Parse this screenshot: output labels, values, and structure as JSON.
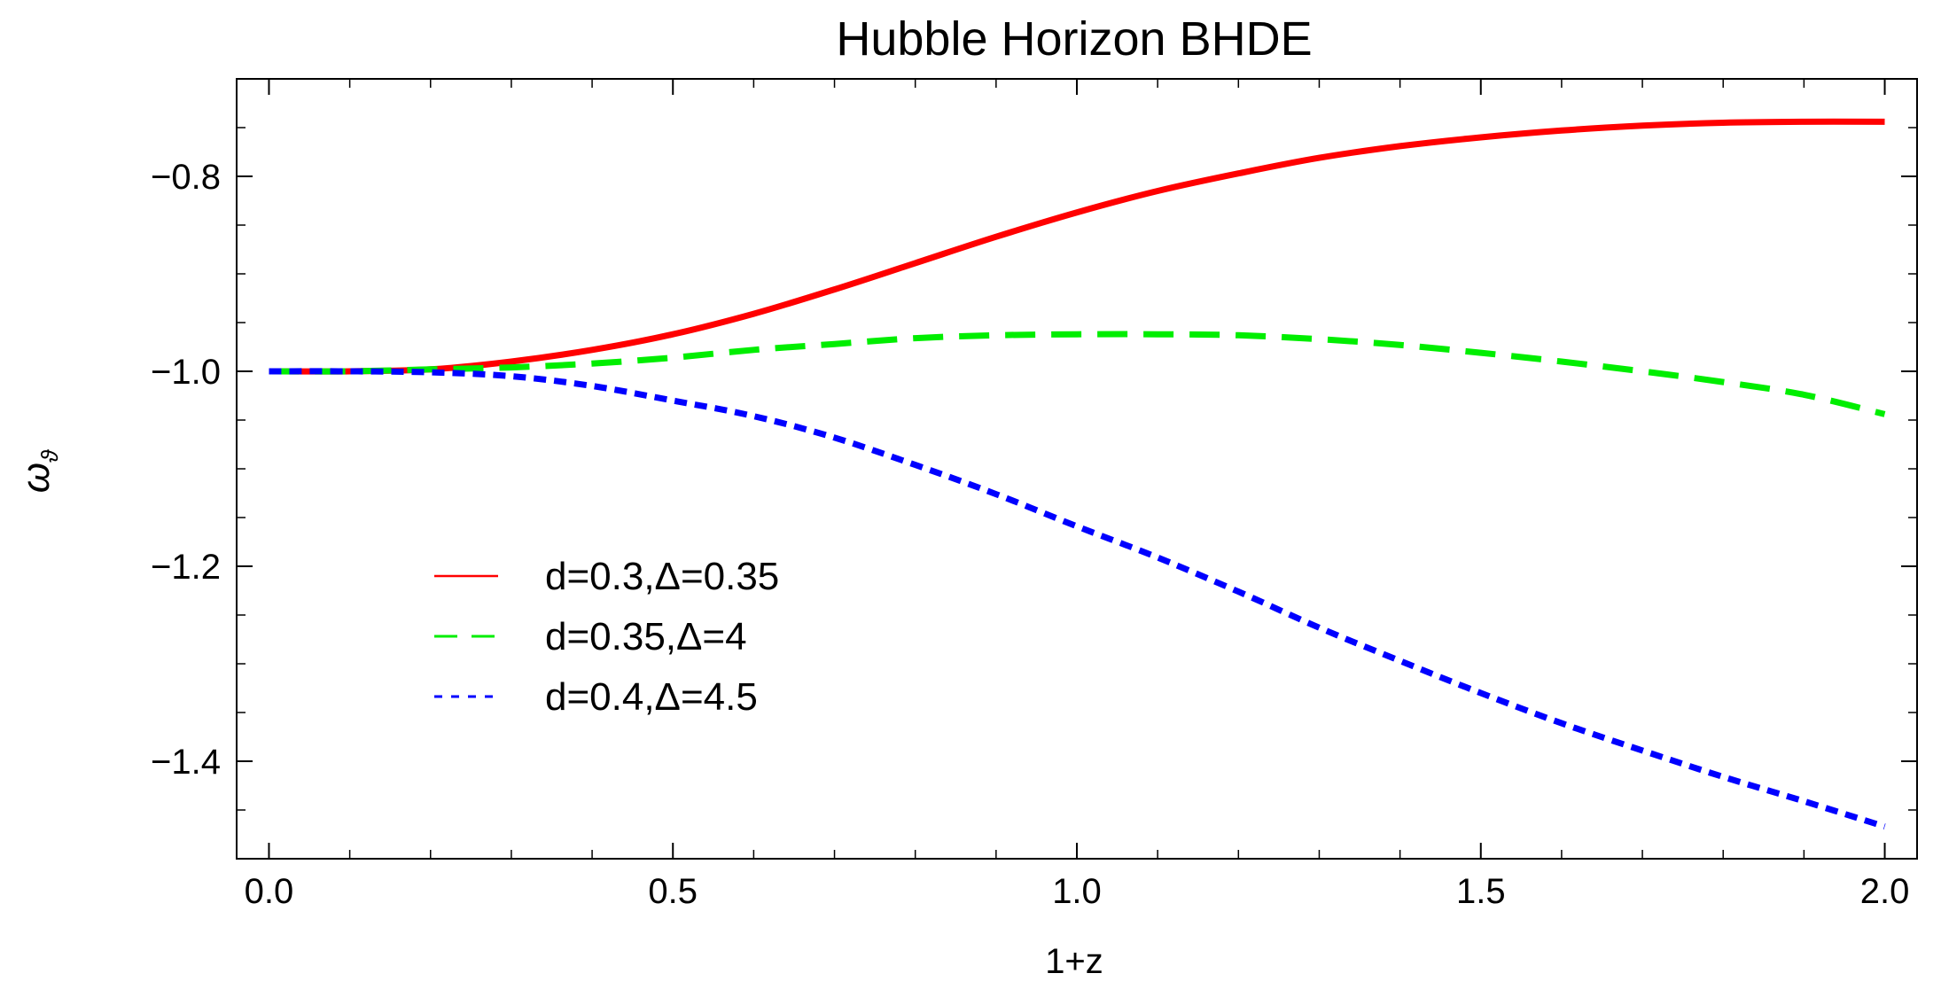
{
  "chart_data": {
    "type": "line",
    "title": "Hubble Horizon BHDE",
    "xlabel": "1+z",
    "ylabel": "ω",
    "ylabel_subscript": "ϑ",
    "xlim": [
      -0.04,
      2.04
    ],
    "ylim": [
      -1.5,
      -0.7
    ],
    "x_ticks": [
      0.0,
      0.5,
      1.0,
      1.5,
      2.0
    ],
    "x_tick_labels": [
      "0.0",
      "0.5",
      "1.0",
      "1.5",
      "2.0"
    ],
    "y_ticks": [
      -0.8,
      -1.0,
      -1.2,
      -1.4
    ],
    "y_tick_labels": [
      "−0.8",
      "−1.0",
      "−1.2",
      "−1.4"
    ],
    "grid": false,
    "legend_position": "center-left",
    "x": [
      0.0,
      0.1,
      0.2,
      0.3,
      0.4,
      0.5,
      0.6,
      0.7,
      0.8,
      0.9,
      1.0,
      1.1,
      1.2,
      1.3,
      1.4,
      1.5,
      1.6,
      1.7,
      1.8,
      1.9,
      2.0
    ],
    "series": [
      {
        "name": "d=0.3,Δ=0.35",
        "color": "#ff0000",
        "dash": "solid",
        "values": [
          -1.0,
          -1.0,
          -0.998,
          -0.99,
          -0.978,
          -0.962,
          -0.941,
          -0.916,
          -0.889,
          -0.862,
          -0.837,
          -0.815,
          -0.797,
          -0.781,
          -0.769,
          -0.76,
          -0.753,
          -0.748,
          -0.745,
          -0.744,
          -0.744
        ]
      },
      {
        "name": "d=0.35,Δ=4",
        "color": "#00ee00",
        "dash": "long-dash",
        "values": [
          -1.0,
          -1.0,
          -0.998,
          -0.996,
          -0.992,
          -0.986,
          -0.978,
          -0.972,
          -0.966,
          -0.963,
          -0.962,
          -0.962,
          -0.963,
          -0.967,
          -0.973,
          -0.981,
          -0.99,
          -1.0,
          -1.011,
          -1.024,
          -1.044
        ]
      },
      {
        "name": "d=0.4,Δ=4.5",
        "color": "#0000ff",
        "dash": "short-dash",
        "values": [
          -1.0,
          -1.0,
          -1.001,
          -1.005,
          -1.015,
          -1.03,
          -1.046,
          -1.068,
          -1.096,
          -1.126,
          -1.159,
          -1.191,
          -1.226,
          -1.263,
          -1.297,
          -1.33,
          -1.361,
          -1.389,
          -1.416,
          -1.441,
          -1.467
        ]
      }
    ]
  }
}
